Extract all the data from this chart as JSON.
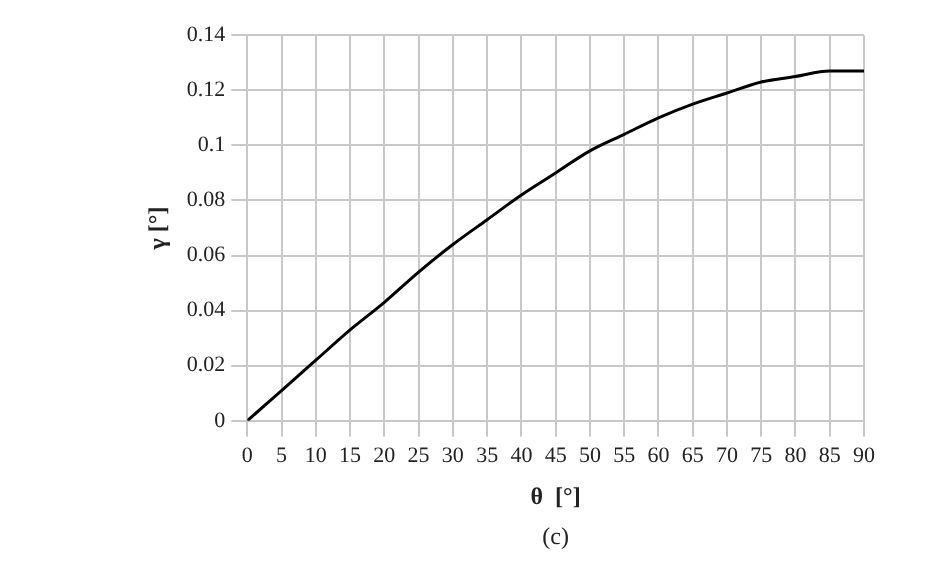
{
  "chart_data": {
    "type": "line",
    "xlabel": "θ  [°]",
    "ylabel": "γ [°]",
    "annotations": [
      "(c)"
    ],
    "x": [
      0,
      5,
      10,
      15,
      20,
      25,
      30,
      35,
      40,
      45,
      50,
      55,
      60,
      65,
      70,
      75,
      80,
      85,
      90
    ],
    "series": [
      {
        "color": "#000000",
        "values": [
          0,
          0.011,
          0.022,
          0.033,
          0.043,
          0.054,
          0.064,
          0.073,
          0.082,
          0.09,
          0.098,
          0.104,
          0.11,
          0.115,
          0.119,
          0.123,
          0.125,
          0.127,
          0.127
        ]
      }
    ],
    "xlim": [
      0,
      90
    ],
    "xticks": [
      0,
      5,
      10,
      15,
      20,
      25,
      30,
      35,
      40,
      45,
      50,
      55,
      60,
      65,
      70,
      75,
      80,
      85,
      90
    ],
    "ylim": [
      0,
      0.14
    ],
    "yticks": [
      0,
      0.02,
      0.04,
      0.06,
      0.08,
      0.1,
      0.12,
      0.14
    ],
    "grid": true,
    "marker": "none",
    "line_style": "solid",
    "legend": false
  }
}
